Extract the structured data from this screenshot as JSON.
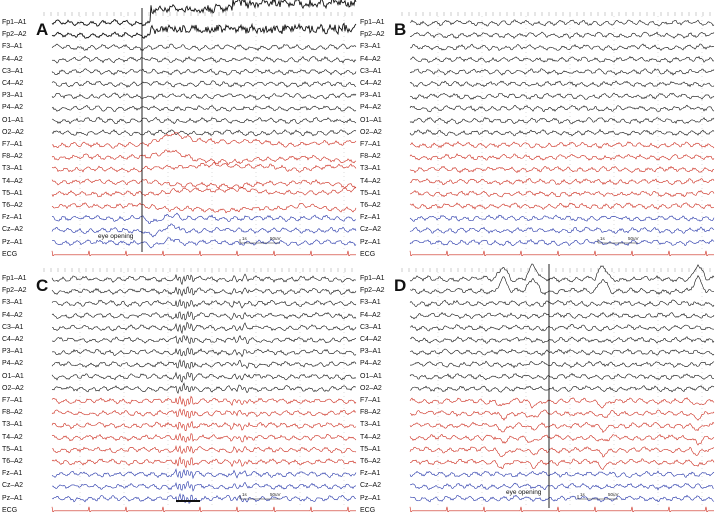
{
  "channels": [
    "Fp1–A1",
    "Fp2–A2",
    "F3–A1",
    "F4–A2",
    "C3–A1",
    "C4–A2",
    "P3–A1",
    "P4–A2",
    "O1–A1",
    "O2–A2",
    "F7–A1",
    "F8–A2",
    "T3–A1",
    "T4–A2",
    "T5–A1",
    "T6–A2",
    "Fz–A1",
    "Cz–A2",
    "Pz–A1",
    "ECG"
  ],
  "colors": {
    "black_group": "#111111",
    "red_group": "#cc2b1d",
    "blue_group": "#2233a8",
    "ecg": "#cc2b1d",
    "marker": "#222222"
  },
  "panels": [
    {
      "letter": "A",
      "annotation": "eye opening",
      "scale_time": "1s",
      "scale_amp": "50uV",
      "event": "eye-opening-artifact"
    },
    {
      "letter": "B",
      "annotation": "",
      "scale_time": "1s",
      "scale_amp": "50uV",
      "event": "none"
    },
    {
      "letter": "C",
      "annotation": "",
      "scale_time": "1s",
      "scale_amp": "50uV",
      "event": "mid-burst"
    },
    {
      "letter": "D",
      "annotation": "eye opening",
      "scale_time": "1s",
      "scale_amp": "50uV",
      "event": "blink-deflections"
    }
  ]
}
